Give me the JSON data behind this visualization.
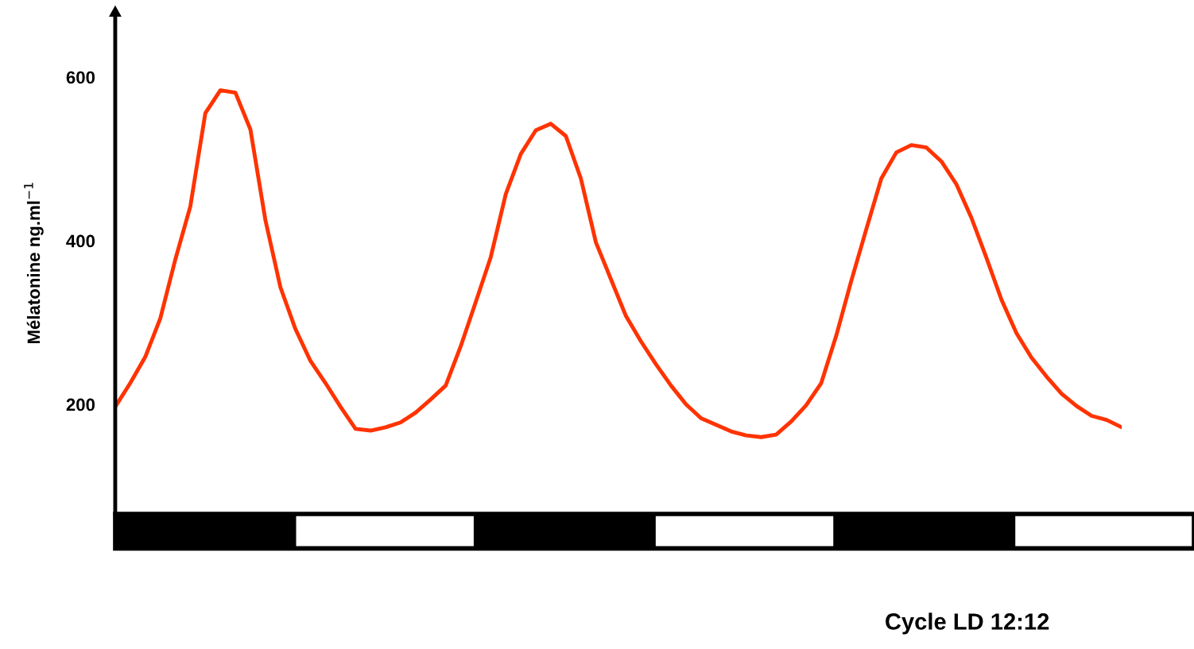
{
  "chart_data": {
    "type": "line",
    "ylabel": "Mélatonine ng.ml$^{−1}$",
    "xlabel": "Cycle LD 12:12",
    "categories": [
      null,
      null,
      null,
      null,
      null,
      null,
      null,
      null,
      null,
      null,
      null,
      null,
      null,
      null,
      null,
      null,
      null,
      null,
      null,
      null,
      null,
      null,
      null,
      null,
      null,
      null,
      null,
      null,
      null,
      null,
      null,
      null,
      null,
      null,
      null,
      null,
      null,
      null,
      null,
      null,
      null,
      null,
      null,
      null,
      null,
      null,
      null,
      null,
      null,
      null,
      null,
      null,
      null,
      null,
      null,
      null,
      null,
      null,
      null,
      null,
      null,
      null,
      null,
      null,
      null,
      null,
      null,
      null
    ],
    "ylim": [
      66,
      680
    ],
    "yticks": [
      200,
      400,
      600
    ],
    "tick_labels": "y",
    "grid": false,
    "legend": false,
    "marker": "none",
    "line_style": "solid",
    "series": [
      {
        "color": "#ff3300",
        "values": [
          197,
          226,
          258,
          305,
          377,
          442,
          556,
          584,
          581,
          536,
          425,
          343,
          292,
          253,
          226,
          197,
          170,
          168,
          172,
          178,
          190,
          206,
          223,
          271,
          325,
          380,
          457,
          506,
          535,
          543,
          528,
          476,
          398,
          353,
          308,
          277,
          249,
          223,
          200,
          183,
          175,
          167,
          162,
          160,
          163,
          179,
          199,
          226,
          284,
          351,
          414,
          476,
          508,
          517,
          514,
          497,
          469,
          428,
          379,
          328,
          287,
          257,
          234,
          213,
          198,
          186,
          181,
          172
        ]
      }
    ]
  }
}
